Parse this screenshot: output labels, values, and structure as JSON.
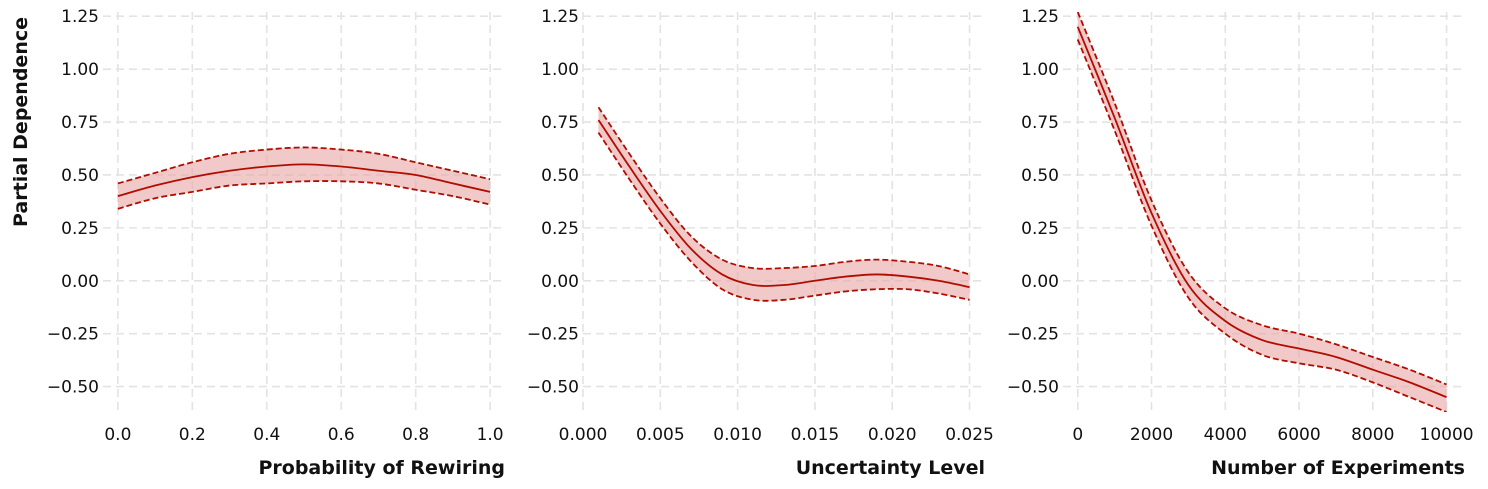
{
  "figure": {
    "ylabel": "Partial Dependence",
    "colors": {
      "line": "#b00c00",
      "band": "#e8a5a5",
      "grid": "#e3e3e3"
    }
  },
  "chart_data": [
    {
      "type": "line",
      "xlabel": "Probability of Rewiring",
      "ylabel": "Partial Dependence",
      "xlim": [
        -0.04,
        1.04
      ],
      "ylim": [
        -0.62,
        1.27
      ],
      "grid": true,
      "x_ticks": [
        0.0,
        0.2,
        0.4,
        0.6,
        0.8,
        1.0
      ],
      "x_tick_labels": [
        "0.0",
        "0.2",
        "0.4",
        "0.6",
        "0.8",
        "1.0"
      ],
      "y_ticks": [
        -0.5,
        -0.25,
        0.0,
        0.25,
        0.5,
        0.75,
        1.0,
        1.25
      ],
      "y_tick_labels": [
        "−0.50",
        "−0.25",
        "0.00",
        "0.25",
        "0.50",
        "0.75",
        "1.00",
        "1.25"
      ],
      "x": [
        0.0,
        0.1,
        0.2,
        0.3,
        0.4,
        0.5,
        0.6,
        0.7,
        0.8,
        0.9,
        1.0
      ],
      "series": [
        {
          "role": "mean",
          "values": [
            0.4,
            0.45,
            0.49,
            0.52,
            0.54,
            0.55,
            0.54,
            0.52,
            0.5,
            0.46,
            0.42
          ]
        },
        {
          "role": "lower",
          "values": [
            0.34,
            0.39,
            0.42,
            0.45,
            0.46,
            0.47,
            0.47,
            0.46,
            0.43,
            0.4,
            0.36
          ]
        },
        {
          "role": "upper",
          "values": [
            0.46,
            0.51,
            0.56,
            0.6,
            0.62,
            0.63,
            0.62,
            0.6,
            0.56,
            0.52,
            0.48
          ]
        }
      ]
    },
    {
      "type": "line",
      "xlabel": "Uncertainty Level",
      "ylabel": "",
      "xlim": [
        0.0,
        0.026
      ],
      "ylim": [
        -0.62,
        1.27
      ],
      "grid": true,
      "x_ticks": [
        0.0,
        0.005,
        0.01,
        0.015,
        0.02,
        0.025
      ],
      "x_tick_labels": [
        "0.000",
        "0.005",
        "0.010",
        "0.015",
        "0.020",
        "0.025"
      ],
      "y_ticks": [
        -0.5,
        -0.25,
        0.0,
        0.25,
        0.5,
        0.75,
        1.0,
        1.25
      ],
      "y_tick_labels": [
        "−0.50",
        "−0.25",
        "0.00",
        "0.25",
        "0.50",
        "0.75",
        "1.00",
        "1.25"
      ],
      "x": [
        0.001,
        0.003,
        0.005,
        0.007,
        0.009,
        0.011,
        0.013,
        0.015,
        0.017,
        0.019,
        0.021,
        0.023,
        0.025
      ],
      "series": [
        {
          "role": "mean",
          "values": [
            0.76,
            0.54,
            0.33,
            0.15,
            0.03,
            -0.02,
            -0.02,
            0.0,
            0.02,
            0.03,
            0.02,
            0.0,
            -0.03
          ]
        },
        {
          "role": "lower",
          "values": [
            0.7,
            0.48,
            0.27,
            0.09,
            -0.04,
            -0.09,
            -0.09,
            -0.07,
            -0.05,
            -0.04,
            -0.04,
            -0.06,
            -0.09
          ]
        },
        {
          "role": "upper",
          "values": [
            0.82,
            0.6,
            0.39,
            0.21,
            0.1,
            0.06,
            0.06,
            0.07,
            0.09,
            0.1,
            0.09,
            0.07,
            0.03
          ]
        }
      ]
    },
    {
      "type": "line",
      "xlabel": "Number of Experiments",
      "ylabel": "",
      "xlim": [
        -400,
        10500
      ],
      "ylim": [
        -0.62,
        1.27
      ],
      "grid": true,
      "x_ticks": [
        0,
        2000,
        4000,
        6000,
        8000,
        10000
      ],
      "x_tick_labels": [
        "0",
        "2000",
        "4000",
        "6000",
        "8000",
        "10000"
      ],
      "y_ticks": [
        -0.5,
        -0.25,
        0.0,
        0.25,
        0.5,
        0.75,
        1.0,
        1.25
      ],
      "y_tick_labels": [
        "−0.50",
        "−0.25",
        "0.00",
        "0.25",
        "0.50",
        "0.75",
        "1.00",
        "1.25"
      ],
      "x": [
        0,
        1000,
        2000,
        3000,
        4000,
        5000,
        6000,
        7000,
        8000,
        9000,
        10000
      ],
      "series": [
        {
          "role": "mean",
          "values": [
            1.2,
            0.77,
            0.32,
            -0.02,
            -0.19,
            -0.28,
            -0.32,
            -0.36,
            -0.42,
            -0.48,
            -0.55
          ]
        },
        {
          "role": "lower",
          "values": [
            1.14,
            0.71,
            0.26,
            -0.08,
            -0.25,
            -0.35,
            -0.39,
            -0.42,
            -0.48,
            -0.55,
            -0.62
          ]
        },
        {
          "role": "upper",
          "values": [
            1.27,
            0.84,
            0.38,
            0.04,
            -0.13,
            -0.21,
            -0.25,
            -0.3,
            -0.36,
            -0.42,
            -0.49
          ]
        }
      ]
    }
  ]
}
